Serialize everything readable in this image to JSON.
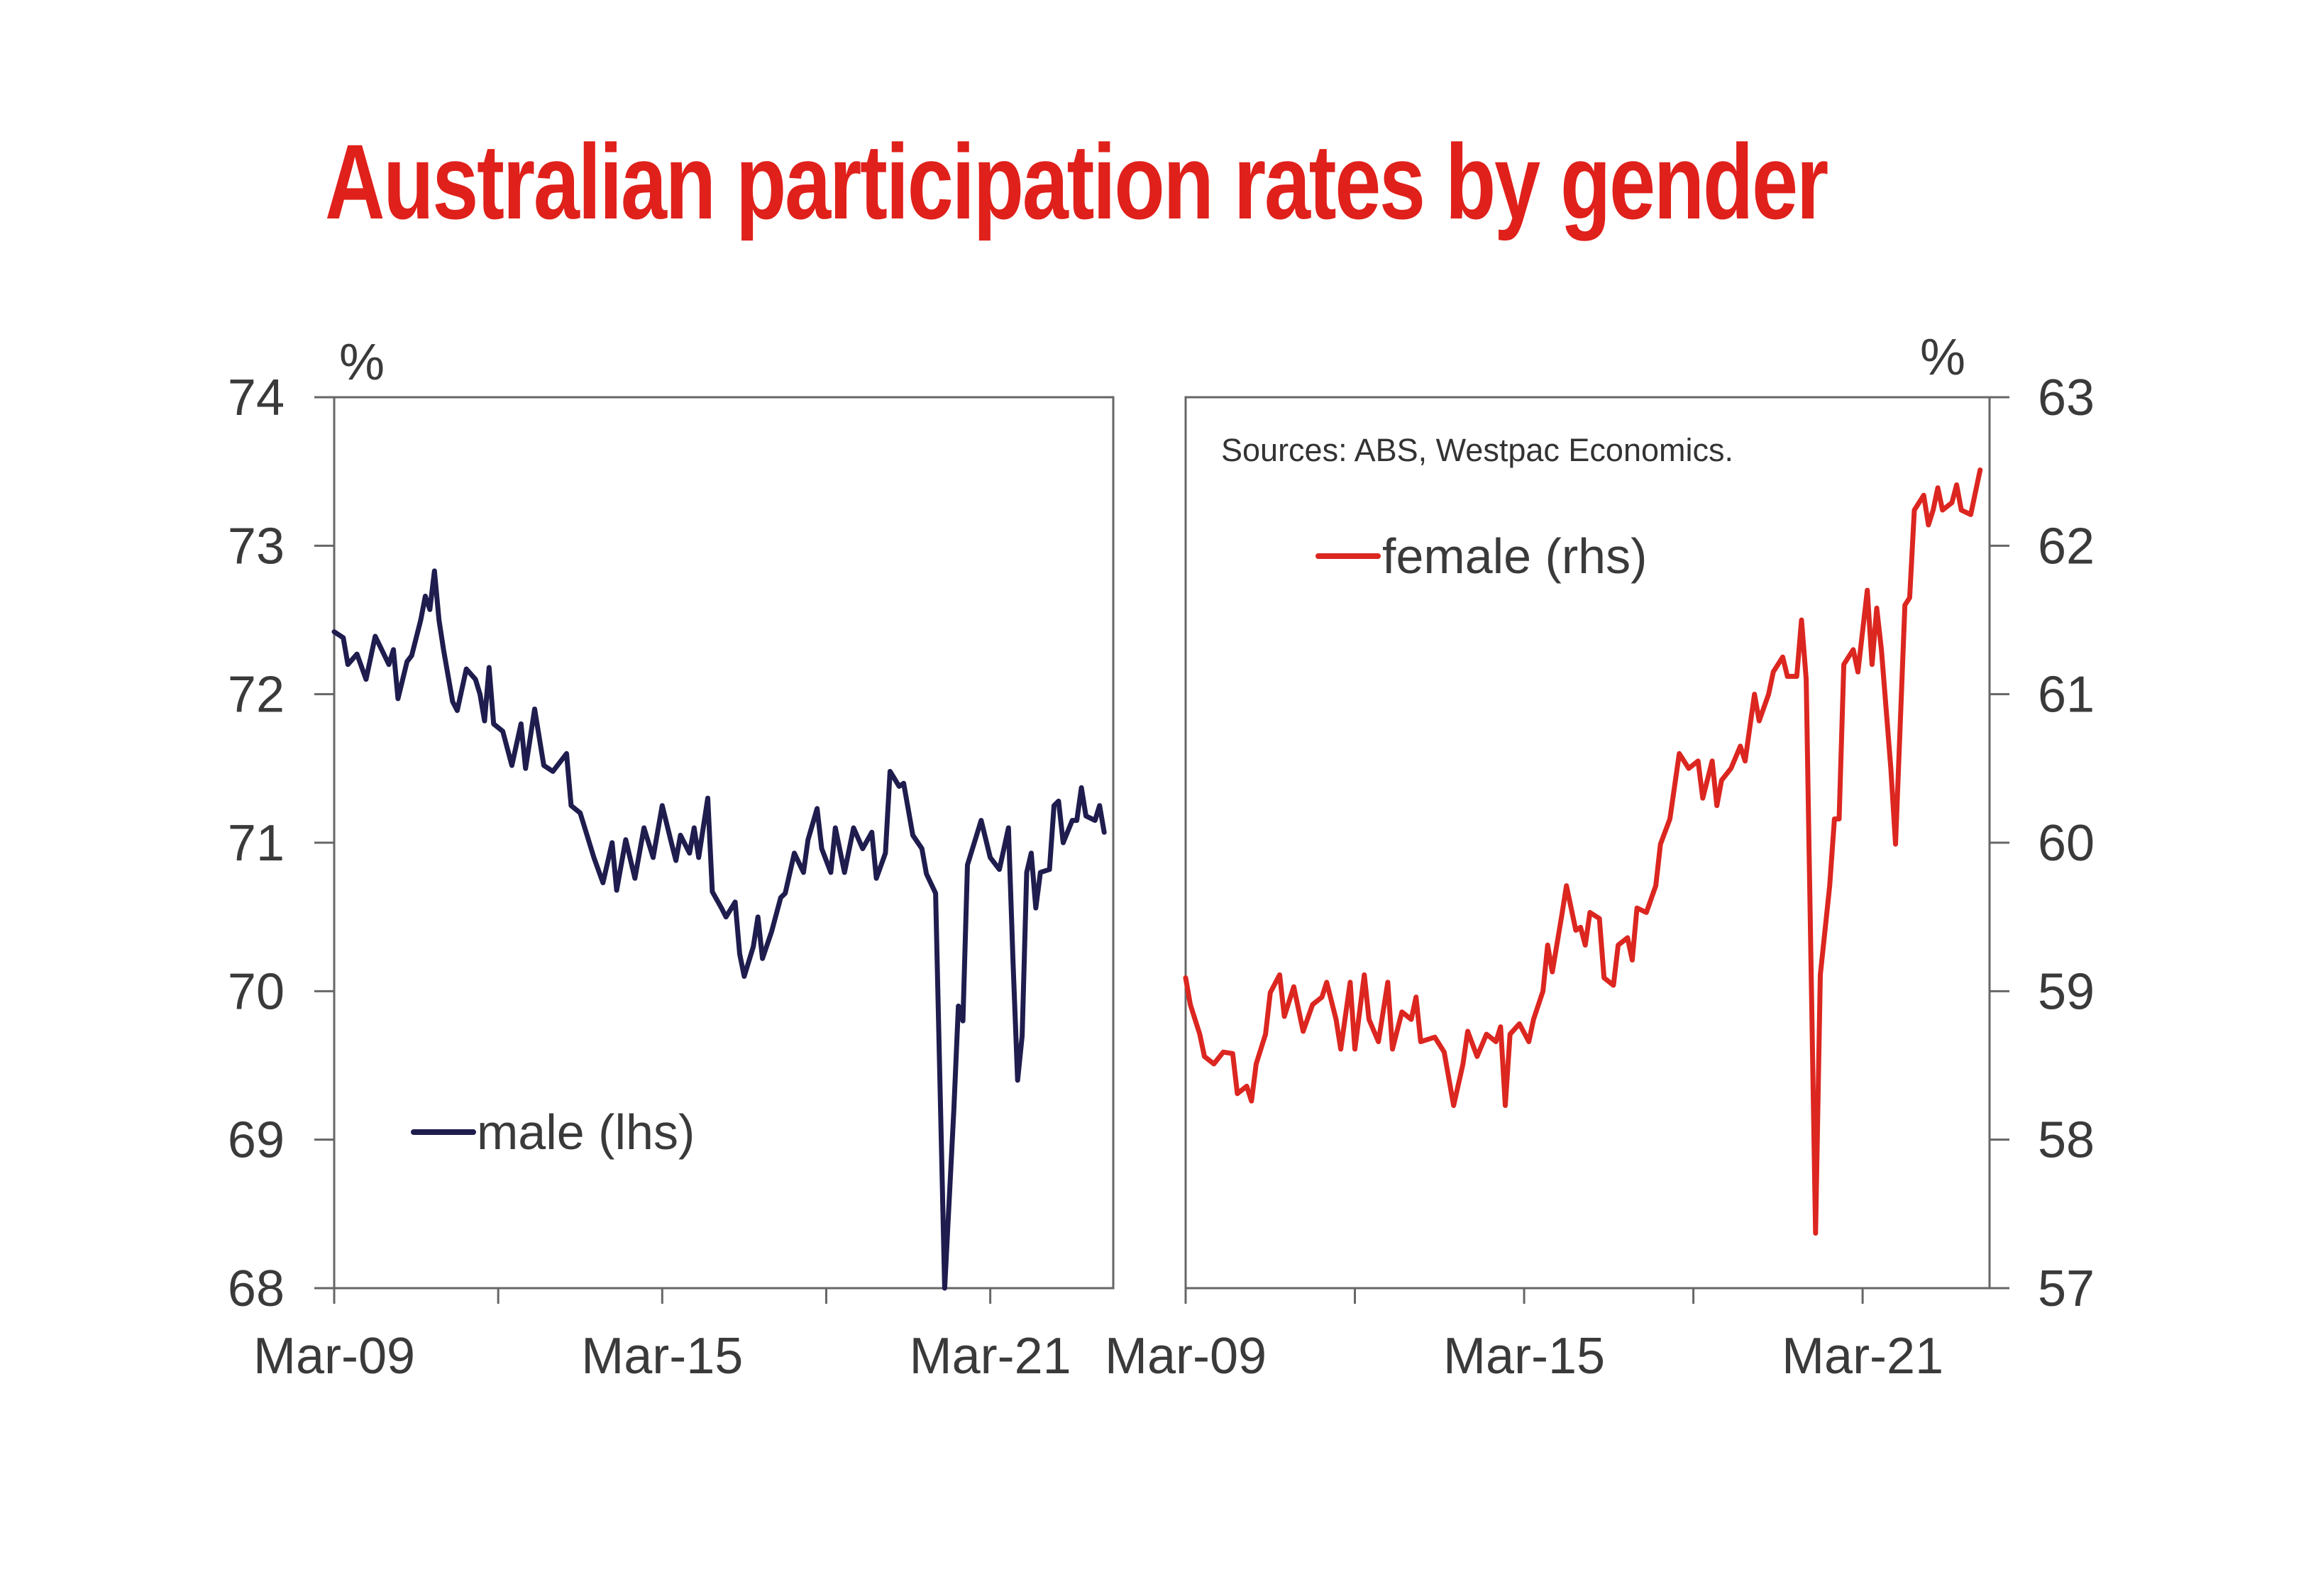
{
  "title": "Australian participation rates by gender",
  "colors": {
    "title": "#e0201b",
    "male": "#1f1c4e",
    "female": "#dc2620",
    "axis": "#666666"
  },
  "chart_data": [
    {
      "type": "line",
      "panel": "left",
      "unit_label": "%",
      "ylim": [
        68,
        74
      ],
      "yticks": [
        "68",
        "69",
        "70",
        "71",
        "72",
        "73",
        "74"
      ],
      "xlim": [
        "2009-03",
        "2023-06"
      ],
      "xtick_dates": [
        "2009-03",
        "2012-03",
        "2015-03",
        "2018-03",
        "2021-03"
      ],
      "xtick_labels": [
        "Mar-09",
        "",
        "Mar-15",
        "",
        "Mar-21"
      ],
      "grid": false,
      "legend": "bottom-left",
      "series": [
        {
          "name": "male (lhs)",
          "points": [
            [
              "2009-03",
              72.42
            ],
            [
              "2009-05",
              72.38
            ],
            [
              "2009-06",
              72.2
            ],
            [
              "2009-08",
              72.27
            ],
            [
              "2009-10",
              72.1
            ],
            [
              "2009-12",
              72.39
            ],
            [
              "2010-03",
              72.2
            ],
            [
              "2010-04",
              72.3
            ],
            [
              "2010-05",
              71.97
            ],
            [
              "2010-07",
              72.22
            ],
            [
              "2010-08",
              72.26
            ],
            [
              "2010-10",
              72.5
            ],
            [
              "2010-11",
              72.66
            ],
            [
              "2010-12",
              72.57
            ],
            [
              "2011-01",
              72.83
            ],
            [
              "2011-02",
              72.5
            ],
            [
              "2011-03",
              72.3
            ],
            [
              "2011-05",
              71.95
            ],
            [
              "2011-06",
              71.89
            ],
            [
              "2011-08",
              72.17
            ],
            [
              "2011-10",
              72.1
            ],
            [
              "2011-11",
              72.0
            ],
            [
              "2011-12",
              71.82
            ],
            [
              "2012-01",
              72.18
            ],
            [
              "2012-02",
              71.8
            ],
            [
              "2012-04",
              71.75
            ],
            [
              "2012-06",
              71.52
            ],
            [
              "2012-08",
              71.8
            ],
            [
              "2012-09",
              71.5
            ],
            [
              "2012-11",
              71.9
            ],
            [
              "2013-01",
              71.52
            ],
            [
              "2013-03",
              71.48
            ],
            [
              "2013-06",
              71.6
            ],
            [
              "2013-07",
              71.25
            ],
            [
              "2013-09",
              71.2
            ],
            [
              "2013-12",
              70.9
            ],
            [
              "2014-02",
              70.73
            ],
            [
              "2014-04",
              71.0
            ],
            [
              "2014-05",
              70.68
            ],
            [
              "2014-07",
              71.02
            ],
            [
              "2014-09",
              70.76
            ],
            [
              "2014-11",
              71.1
            ],
            [
              "2015-01",
              70.9
            ],
            [
              "2015-03",
              71.25
            ],
            [
              "2015-05",
              71.0
            ],
            [
              "2015-06",
              70.88
            ],
            [
              "2015-07",
              71.05
            ],
            [
              "2015-09",
              70.93
            ],
            [
              "2015-10",
              71.1
            ],
            [
              "2015-11",
              70.9
            ],
            [
              "2016-01",
              71.3
            ],
            [
              "2016-02",
              70.67
            ],
            [
              "2016-04",
              70.56
            ],
            [
              "2016-05",
              70.5
            ],
            [
              "2016-07",
              70.6
            ],
            [
              "2016-08",
              70.25
            ],
            [
              "2016-09",
              70.1
            ],
            [
              "2016-11",
              70.3
            ],
            [
              "2016-12",
              70.5
            ],
            [
              "2017-01",
              70.22
            ],
            [
              "2017-03",
              70.4
            ],
            [
              "2017-05",
              70.63
            ],
            [
              "2017-06",
              70.66
            ],
            [
              "2017-08",
              70.93
            ],
            [
              "2017-10",
              70.8
            ],
            [
              "2017-11",
              71.02
            ],
            [
              "2018-01",
              71.23
            ],
            [
              "2018-02",
              70.96
            ],
            [
              "2018-04",
              70.8
            ],
            [
              "2018-05",
              71.1
            ],
            [
              "2018-07",
              70.8
            ],
            [
              "2018-09",
              71.1
            ],
            [
              "2018-11",
              70.96
            ],
            [
              "2019-01",
              71.07
            ],
            [
              "2019-02",
              70.76
            ],
            [
              "2019-04",
              70.93
            ],
            [
              "2019-05",
              71.48
            ],
            [
              "2019-07",
              71.38
            ],
            [
              "2019-08",
              71.4
            ],
            [
              "2019-10",
              71.05
            ],
            [
              "2019-12",
              70.96
            ],
            [
              "2020-01",
              70.79
            ],
            [
              "2020-03",
              70.66
            ],
            [
              "2020-05",
              68.0
            ],
            [
              "2020-07",
              69.2
            ],
            [
              "2020-08",
              69.9
            ],
            [
              "2020-09",
              69.8
            ],
            [
              "2020-10",
              70.85
            ],
            [
              "2020-12",
              71.05
            ],
            [
              "2021-01",
              71.15
            ],
            [
              "2021-03",
              70.9
            ],
            [
              "2021-05",
              70.82
            ],
            [
              "2021-07",
              71.1
            ],
            [
              "2021-08",
              70.2
            ],
            [
              "2021-09",
              69.4
            ],
            [
              "2021-10",
              69.7
            ],
            [
              "2021-11",
              70.8
            ],
            [
              "2021-12",
              70.93
            ],
            [
              "2022-01",
              70.56
            ],
            [
              "2022-02",
              70.8
            ],
            [
              "2022-04",
              70.82
            ],
            [
              "2022-05",
              71.25
            ],
            [
              "2022-06",
              71.28
            ],
            [
              "2022-07",
              71.0
            ],
            [
              "2022-09",
              71.15
            ],
            [
              "2022-10",
              71.15
            ],
            [
              "2022-11",
              71.37
            ],
            [
              "2022-12",
              71.18
            ],
            [
              "2023-02",
              71.15
            ],
            [
              "2023-03",
              71.25
            ],
            [
              "2023-04",
              71.07
            ]
          ]
        }
      ]
    },
    {
      "type": "line",
      "panel": "right",
      "unit_label": "%",
      "ylim": [
        57,
        63
      ],
      "yticks": [
        "57",
        "58",
        "59",
        "60",
        "61",
        "62",
        "63"
      ],
      "xlim": [
        "2009-03",
        "2023-06"
      ],
      "xtick_dates": [
        "2009-03",
        "2012-03",
        "2015-03",
        "2018-03",
        "2021-03"
      ],
      "xtick_labels": [
        "Mar-09",
        "",
        "Mar-15",
        "",
        "Mar-21"
      ],
      "grid": false,
      "legend": "top-left",
      "annotation": "Sources: ABS, Westpac Economics.",
      "series": [
        {
          "name": "female (rhs)",
          "points": [
            [
              "2009-03",
              59.09
            ],
            [
              "2009-04",
              58.91
            ],
            [
              "2009-06",
              58.71
            ],
            [
              "2009-07",
              58.56
            ],
            [
              "2009-09",
              58.51
            ],
            [
              "2009-11",
              58.59
            ],
            [
              "2010-01",
              58.58
            ],
            [
              "2010-02",
              58.31
            ],
            [
              "2010-04",
              58.36
            ],
            [
              "2010-05",
              58.26
            ],
            [
              "2010-06",
              58.51
            ],
            [
              "2010-08",
              58.71
            ],
            [
              "2010-09",
              58.99
            ],
            [
              "2010-11",
              59.11
            ],
            [
              "2010-12",
              58.83
            ],
            [
              "2011-02",
              59.03
            ],
            [
              "2011-04",
              58.73
            ],
            [
              "2011-06",
              58.91
            ],
            [
              "2011-08",
              58.96
            ],
            [
              "2011-09",
              59.06
            ],
            [
              "2011-11",
              58.81
            ],
            [
              "2011-12",
              58.61
            ],
            [
              "2012-02",
              59.06
            ],
            [
              "2012-03",
              58.61
            ],
            [
              "2012-05",
              59.11
            ],
            [
              "2012-06",
              58.81
            ],
            [
              "2012-08",
              58.66
            ],
            [
              "2012-10",
              59.06
            ],
            [
              "2012-11",
              58.61
            ],
            [
              "2013-01",
              58.86
            ],
            [
              "2013-03",
              58.81
            ],
            [
              "2013-04",
              58.96
            ],
            [
              "2013-05",
              58.66
            ],
            [
              "2013-08",
              58.69
            ],
            [
              "2013-10",
              58.59
            ],
            [
              "2013-12",
              58.23
            ],
            [
              "2014-02",
              58.51
            ],
            [
              "2014-03",
              58.73
            ],
            [
              "2014-05",
              58.56
            ],
            [
              "2014-07",
              58.71
            ],
            [
              "2014-09",
              58.66
            ],
            [
              "2014-10",
              58.76
            ],
            [
              "2014-11",
              58.23
            ],
            [
              "2014-12",
              58.71
            ],
            [
              "2015-02",
              58.78
            ],
            [
              "2015-04",
              58.66
            ],
            [
              "2015-05",
              58.81
            ],
            [
              "2015-07",
              59.0
            ],
            [
              "2015-08",
              59.31
            ],
            [
              "2015-09",
              59.13
            ],
            [
              "2015-11",
              59.51
            ],
            [
              "2015-12",
              59.71
            ],
            [
              "2016-02",
              59.41
            ],
            [
              "2016-03",
              59.43
            ],
            [
              "2016-04",
              59.31
            ],
            [
              "2016-05",
              59.53
            ],
            [
              "2016-07",
              59.49
            ],
            [
              "2016-08",
              59.09
            ],
            [
              "2016-10",
              59.04
            ],
            [
              "2016-11",
              59.31
            ],
            [
              "2017-01",
              59.36
            ],
            [
              "2017-02",
              59.21
            ],
            [
              "2017-03",
              59.56
            ],
            [
              "2017-05",
              59.53
            ],
            [
              "2017-07",
              59.71
            ],
            [
              "2017-08",
              59.99
            ],
            [
              "2017-10",
              60.16
            ],
            [
              "2017-12",
              60.6
            ],
            [
              "2018-02",
              60.5
            ],
            [
              "2018-04",
              60.55
            ],
            [
              "2018-05",
              60.3
            ],
            [
              "2018-07",
              60.55
            ],
            [
              "2018-08",
              60.25
            ],
            [
              "2018-09",
              60.42
            ],
            [
              "2018-11",
              60.5
            ],
            [
              "2019-01",
              60.65
            ],
            [
              "2019-02",
              60.55
            ],
            [
              "2019-04",
              61.0
            ],
            [
              "2019-05",
              60.82
            ],
            [
              "2019-07",
              61.0
            ],
            [
              "2019-08",
              61.15
            ],
            [
              "2019-10",
              61.25
            ],
            [
              "2019-11",
              61.12
            ],
            [
              "2020-01",
              61.12
            ],
            [
              "2020-02",
              61.5
            ],
            [
              "2020-03",
              61.1
            ],
            [
              "2020-05",
              57.37
            ],
            [
              "2020-06",
              59.11
            ],
            [
              "2020-08",
              59.71
            ],
            [
              "2020-09",
              60.16
            ],
            [
              "2020-10",
              60.16
            ],
            [
              "2020-11",
              61.2
            ],
            [
              "2021-01",
              61.3
            ],
            [
              "2021-02",
              61.15
            ],
            [
              "2021-04",
              61.7
            ],
            [
              "2021-05",
              61.2
            ],
            [
              "2021-06",
              61.58
            ],
            [
              "2021-07",
              61.3
            ],
            [
              "2021-09",
              60.5
            ],
            [
              "2021-10",
              59.99
            ],
            [
              "2021-12",
              61.6
            ],
            [
              "2022-01",
              61.65
            ],
            [
              "2022-02",
              62.24
            ],
            [
              "2022-04",
              62.34
            ],
            [
              "2022-05",
              62.14
            ],
            [
              "2022-06",
              62.24
            ],
            [
              "2022-07",
              62.39
            ],
            [
              "2022-08",
              62.24
            ],
            [
              "2022-10",
              62.29
            ],
            [
              "2022-11",
              62.41
            ],
            [
              "2022-12",
              62.24
            ],
            [
              "2023-02",
              62.21
            ],
            [
              "2023-04",
              62.51
            ]
          ]
        }
      ]
    }
  ]
}
